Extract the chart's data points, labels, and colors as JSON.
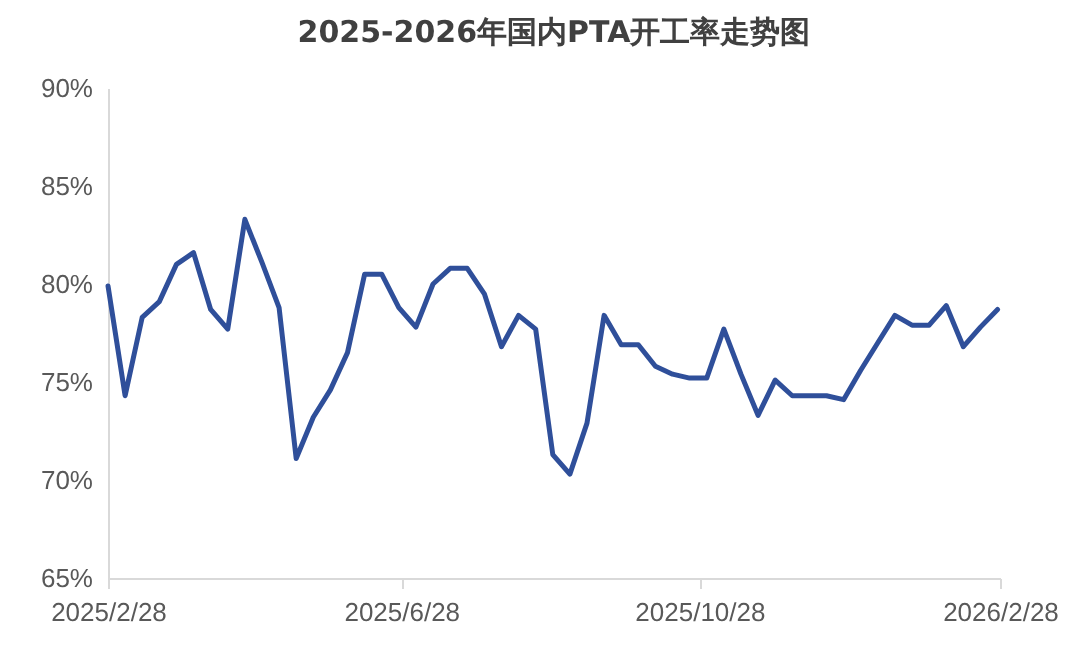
{
  "chart_data": {
    "type": "line",
    "title": "2025-2026年国内PTA开工率走势图",
    "x": [
      "2025-02-28",
      "2025-03-07",
      "2025-03-14",
      "2025-03-21",
      "2025-03-28",
      "2025-04-04",
      "2025-04-11",
      "2025-04-18",
      "2025-04-25",
      "2025-05-02",
      "2025-05-09",
      "2025-05-16",
      "2025-05-23",
      "2025-05-30",
      "2025-06-06",
      "2025-06-13",
      "2025-06-20",
      "2025-06-27",
      "2025-07-04",
      "2025-07-11",
      "2025-07-18",
      "2025-07-25",
      "2025-08-01",
      "2025-08-08",
      "2025-08-15",
      "2025-08-22",
      "2025-08-29",
      "2025-09-05",
      "2025-09-12",
      "2025-09-19",
      "2025-09-26",
      "2025-10-03",
      "2025-10-10",
      "2025-10-17",
      "2025-10-24",
      "2025-10-31",
      "2025-11-07",
      "2025-11-14",
      "2025-11-21",
      "2025-11-28",
      "2025-12-05",
      "2025-12-12",
      "2025-12-19",
      "2025-12-26",
      "2026-01-02",
      "2026-01-09",
      "2026-01-16",
      "2026-01-23",
      "2026-01-30",
      "2026-02-06",
      "2026-02-13",
      "2026-02-20",
      "2026-02-27"
    ],
    "series": [
      {
        "color": "#2f4f9a",
        "values": [
          79.9,
          74.3,
          78.3,
          79.1,
          81.0,
          81.6,
          78.7,
          77.7,
          83.3,
          81.1,
          78.8,
          71.1,
          73.2,
          74.6,
          76.5,
          80.5,
          80.5,
          78.8,
          77.8,
          80.0,
          80.8,
          80.8,
          79.5,
          76.8,
          78.4,
          77.7,
          71.3,
          70.3,
          72.9,
          78.4,
          76.9,
          76.9,
          75.8,
          75.4,
          75.2,
          75.2,
          77.7,
          75.4,
          73.3,
          75.1,
          74.3,
          74.3,
          74.3,
          74.1,
          75.6,
          77.0,
          78.4,
          77.9,
          77.9,
          78.9,
          76.8,
          77.8,
          78.7
        ]
      }
    ],
    "xlim": [
      "2025-02-28",
      "2026-02-28"
    ],
    "xticks": [
      {
        "value": "2025-02-28",
        "label": "2025/2/28"
      },
      {
        "value": "2025-06-28",
        "label": "2025/6/28"
      },
      {
        "value": "2025-10-28",
        "label": "2025/10/28"
      },
      {
        "value": "2026-02-28",
        "label": "2026/2/28"
      }
    ],
    "ylim": [
      65,
      90
    ],
    "yticks": [
      {
        "value": 65,
        "label": "65%"
      },
      {
        "value": 70,
        "label": "70%"
      },
      {
        "value": 75,
        "label": "75%"
      },
      {
        "value": 80,
        "label": "80%"
      },
      {
        "value": 85,
        "label": "85%"
      },
      {
        "value": 90,
        "label": "90%"
      }
    ],
    "grid": false,
    "legend": false,
    "marker": "none",
    "line_style": "solid"
  }
}
